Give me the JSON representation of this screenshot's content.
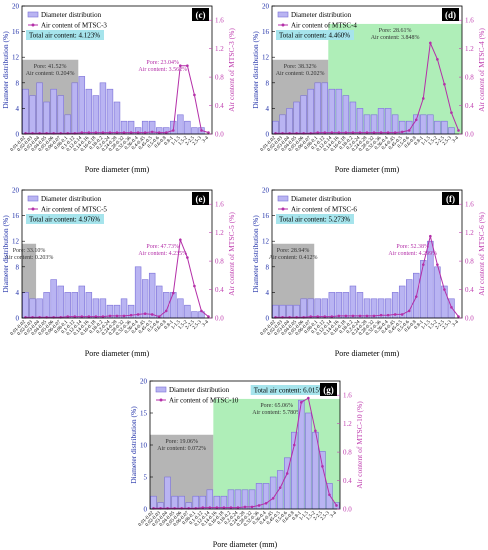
{
  "figure": {
    "colors": {
      "bar_fill": "#b9b4f2",
      "bar_stroke": "#7b70d8",
      "line": "#b42fa8",
      "left_axis": "#1f2fa8",
      "right_axis": "#c040b0",
      "gray_zone": "#a8a8a8",
      "green_zone": "#a6ecb0",
      "panel_label_bg": "#000000",
      "total_box_bg": "#a6e4ec"
    },
    "shared": {
      "xlabel": "Pore diameter (mm)",
      "ylabel_left": "Diameter distribution (%)",
      "xticks": [
        "0.01-0.02",
        "0.02-0.03",
        "0.03-0.04",
        "0.04-0.05",
        "0.05-0.06",
        "0.06-0.07",
        "0.08-0.1",
        "0.1-0.12",
        "0.12-0.14",
        "0.14-0.16",
        "0.16-0.18",
        "0.18-0.2",
        "0.2-0.24",
        "0.24-0.28",
        "0.28-0.32",
        "0.32-0.36",
        "0.36-0.4",
        "0.4-0.45",
        "0.45-0.5",
        "0.5-0.6",
        "0.6-0.8",
        "0.8-1",
        "1-1.5",
        "1.5-2",
        "2-2.5",
        "2.5-3",
        "3-4"
      ],
      "legend_bar": "Diameter distribution"
    }
  },
  "chart_data": [
    {
      "type": "bar",
      "panel": "(c)",
      "legend_line": "Air content of MTSC-3",
      "ylabel_right": "Air content of MTSC-3 (%)",
      "total": "Total air content: 4.123%",
      "ylim": [
        0,
        20
      ],
      "yticks": [
        0,
        4,
        8,
        12,
        16,
        20
      ],
      "y2lim": [
        0,
        1.8
      ],
      "y2ticks": [
        0.0,
        0.4,
        0.8,
        1.2,
        1.6
      ],
      "zones": [
        {
          "kind": "gray",
          "start": 0,
          "end": 8,
          "label1": "Pore: 41.52%",
          "label2": "Air content: 0.204%"
        }
      ],
      "annotation": {
        "label1": "Pore: 23.04%",
        "label2": "Air content: 3.562%",
        "at": 20
      },
      "bars": [
        7,
        6,
        8,
        5,
        7,
        6,
        3,
        8,
        9,
        7,
        6,
        8,
        7,
        5,
        2,
        2,
        1,
        2,
        2,
        1,
        1,
        2,
        3,
        2,
        1,
        1,
        0
      ],
      "line": [
        0.01,
        0.01,
        0.01,
        0.01,
        0.01,
        0.01,
        0.01,
        0.01,
        0.02,
        0.02,
        0.02,
        0.02,
        0.02,
        0.02,
        0.02,
        0.02,
        0.02,
        0.02,
        0.03,
        0.02,
        0.02,
        0.05,
        0.96,
        0.96,
        0.55,
        0.05,
        0.02
      ]
    },
    {
      "type": "bar",
      "panel": "(d)",
      "legend_line": "Air content of MTSC-4",
      "ylabel_right": "Air content of MTSC-4 (%)",
      "total": "Total air content: 4.460%",
      "ylim": [
        0,
        20
      ],
      "yticks": [
        0,
        4,
        8,
        12,
        16,
        20
      ],
      "y2lim": [
        0,
        1.8
      ],
      "y2ticks": [
        0.0,
        0.4,
        0.8,
        1.2,
        1.6
      ],
      "zones": [
        {
          "kind": "gray",
          "start": 0,
          "end": 8,
          "label1": "Pore: 38.32%",
          "label2": "Air content: 0.202%"
        },
        {
          "kind": "green",
          "start": 8,
          "end": 27,
          "label1": "Pore: 28.61%",
          "label2": "Air content: 3.848%"
        }
      ],
      "bars": [
        2,
        3,
        4,
        5,
        6,
        7,
        8,
        8,
        7,
        7,
        6,
        5,
        4,
        3,
        3,
        4,
        4,
        3,
        2,
        2,
        3,
        3,
        3,
        2,
        2,
        1,
        0
      ],
      "line": [
        0.01,
        0.01,
        0.01,
        0.01,
        0.01,
        0.01,
        0.02,
        0.02,
        0.02,
        0.02,
        0.02,
        0.02,
        0.02,
        0.02,
        0.02,
        0.02,
        0.02,
        0.02,
        0.03,
        0.05,
        0.2,
        0.5,
        1.28,
        1.05,
        0.7,
        0.3,
        0.05
      ]
    },
    {
      "type": "bar",
      "panel": "(e)",
      "legend_line": "Air content of MTSC-5",
      "ylabel_right": "Air content of MTSC-5 (%)",
      "total": "Total air content: 4.976%",
      "ylim": [
        0,
        20
      ],
      "yticks": [
        0,
        4,
        8,
        12,
        16,
        20
      ],
      "y2lim": [
        0,
        1.8
      ],
      "y2ticks": [
        0.0,
        0.4,
        0.8,
        1.2,
        1.6
      ],
      "zones": [
        {
          "kind": "gray",
          "start": 0,
          "end": 2,
          "label1": "Pore: 33.10%",
          "label2": "Air content: 0.203%"
        }
      ],
      "annotation": {
        "label1": "Pore: 47.73%",
        "label2": "Air content: 4.235%",
        "at": 20
      },
      "bars": [
        4,
        3,
        3,
        4,
        6,
        5,
        4,
        4,
        5,
        4,
        3,
        3,
        2,
        2,
        3,
        2,
        8,
        6,
        7,
        5,
        4,
        4,
        3,
        2,
        1,
        1,
        0
      ],
      "line": [
        0.01,
        0.01,
        0.01,
        0.01,
        0.01,
        0.01,
        0.02,
        0.02,
        0.02,
        0.02,
        0.02,
        0.02,
        0.03,
        0.03,
        0.03,
        0.04,
        0.05,
        0.06,
        0.05,
        0.02,
        0.1,
        0.35,
        1.1,
        0.85,
        0.45,
        0.1,
        0.02
      ]
    },
    {
      "type": "bar",
      "panel": "(f)",
      "legend_line": "Air content of MTSC-6",
      "ylabel_right": "Air content of MTSC-6 (%)",
      "total": "Total air content: 5.273%",
      "ylim": [
        0,
        20
      ],
      "yticks": [
        0,
        4,
        8,
        12,
        16,
        20
      ],
      "y2lim": [
        0,
        1.8
      ],
      "y2ticks": [
        0.0,
        0.4,
        0.8,
        1.2,
        1.6
      ],
      "zones": [
        {
          "kind": "gray",
          "start": 0,
          "end": 6,
          "label1": "Pore: 28.94%",
          "label2": "Air content: 0.412%"
        }
      ],
      "annotation": {
        "label1": "Pore: 52.38%",
        "label2": "Air content: 4.299%",
        "at": 20
      },
      "bars": [
        2,
        2,
        2,
        2,
        3,
        3,
        3,
        3,
        4,
        4,
        4,
        5,
        4,
        3,
        3,
        3,
        3,
        4,
        5,
        6,
        7,
        9,
        12,
        8,
        5,
        3,
        0
      ],
      "line": [
        0.01,
        0.01,
        0.01,
        0.01,
        0.01,
        0.02,
        0.02,
        0.02,
        0.02,
        0.03,
        0.03,
        0.03,
        0.03,
        0.03,
        0.03,
        0.04,
        0.04,
        0.05,
        0.05,
        0.1,
        0.3,
        0.75,
        1.15,
        0.75,
        0.4,
        0.15,
        0.02
      ]
    },
    {
      "type": "bar",
      "panel": "(g)",
      "legend_line": "Air content of MTSC-10",
      "ylabel_right": "Air content of MTSC-10 (%)",
      "total": "Total air content: 6.015%",
      "ylim": [
        0,
        20
      ],
      "yticks": [
        0,
        5,
        10,
        15,
        20
      ],
      "y2lim": [
        0,
        1.8
      ],
      "y2ticks": [
        0.0,
        0.4,
        0.8,
        1.2,
        1.6
      ],
      "zones": [
        {
          "kind": "gray",
          "start": 0,
          "end": 9,
          "label1": "Pore: 19.06%",
          "label2": "Air content: 0.072%"
        },
        {
          "kind": "green",
          "start": 9,
          "end": 27,
          "label1": "Pore: 65.06%",
          "label2": "Air content: 5.780%"
        }
      ],
      "bars": [
        2,
        1,
        5,
        2,
        2,
        1,
        2,
        2,
        3,
        2,
        2,
        3,
        3,
        3,
        3,
        4,
        4,
        5,
        6,
        8,
        12,
        17,
        15,
        12,
        9,
        4,
        1
      ],
      "line": [
        0.01,
        0.01,
        0.01,
        0.01,
        0.01,
        0.01,
        0.01,
        0.02,
        0.02,
        0.02,
        0.02,
        0.02,
        0.02,
        0.03,
        0.03,
        0.05,
        0.08,
        0.15,
        0.3,
        0.5,
        0.9,
        1.5,
        1.56,
        1.1,
        0.6,
        0.2,
        0.05
      ]
    }
  ]
}
